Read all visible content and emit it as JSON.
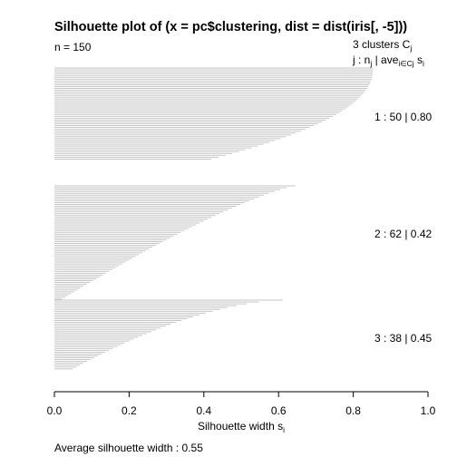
{
  "chart_data": {
    "type": "bar",
    "orientation": "horizontal",
    "title": "Silhouette plot of (x = pc$clustering, dist = dist(iris[, -5]))",
    "n_label": "n = 150",
    "header": {
      "clusters_line": "3  clusters  C",
      "clusters_sub": "j",
      "stats_j": "j :  n",
      "stats_nsub": "j",
      "stats_ave": " | ave",
      "stats_avesub": "i∈Cj",
      "stats_s": "  s",
      "stats_ssub": "i"
    },
    "xlabel_main": "Silhouette width s",
    "xlabel_sub": "i",
    "xlim": [
      0,
      1
    ],
    "x_ticks": [
      0.0,
      0.2,
      0.4,
      0.6,
      0.8,
      1.0
    ],
    "x_tick_labels": [
      "0.0",
      "0.2",
      "0.4",
      "0.6",
      "0.8",
      "1.0"
    ],
    "bar_color": "#bfbfbf",
    "footer": "Average silhouette width :  0.55",
    "clusters": [
      {
        "label": "1 :   50  |  0.80",
        "n": 50,
        "avg": 0.8,
        "max": 0.853,
        "min": 0.42,
        "curve": 2.2
      },
      {
        "label": "2 :   62  |  0.42",
        "n": 62,
        "avg": 0.42,
        "max": 0.645,
        "min": 0.02,
        "curve": 0.8
      },
      {
        "label": "3 :   38  |  0.45",
        "n": 38,
        "avg": 0.45,
        "max": 0.612,
        "min": 0.05,
        "curve": 0.6
      }
    ]
  }
}
